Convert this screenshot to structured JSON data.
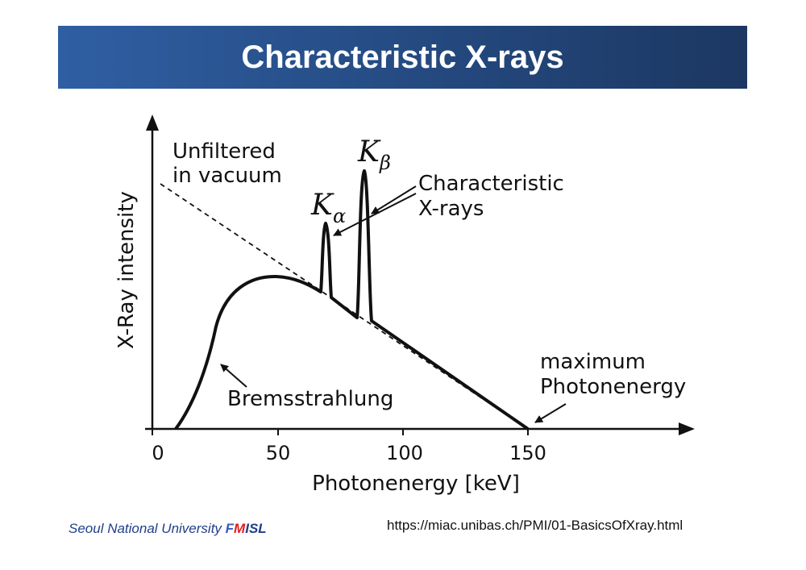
{
  "title": "Characteristic X-rays",
  "diagram": {
    "y_axis_label": "X-Ray intensity",
    "x_axis_label": "Photonenergy [keV]",
    "x_ticks": [
      "0",
      "50",
      "100",
      "150"
    ],
    "annotations": {
      "unfiltered_line1": "Unfiltered",
      "unfiltered_line2": "in vacuum",
      "k_alpha_main": "K",
      "k_alpha_sub": "α",
      "k_beta_main": "K",
      "k_beta_sub": "β",
      "characteristic_line1": "Characteristic",
      "characteristic_line2": "X-rays",
      "bremsstrahlung": "Bremsstrahlung",
      "max_line1": "maximum",
      "max_line2": "Photonenergy"
    }
  },
  "footer": {
    "university": "Seoul National University",
    "lab_f": "F",
    "lab_m": "M",
    "lab_i": "I",
    "lab_s": "S",
    "lab_l": "L",
    "source_url": "https://miac.unibas.ch/PMI/01-BasicsOfXray.html"
  },
  "colors": {
    "title_bar": "#24497f",
    "lab_f": "#3a5bbf",
    "lab_m": "#e02020",
    "lab_i": "#1f3f8a",
    "lab_s": "#1f3f8a",
    "lab_l": "#1f3f8a"
  }
}
